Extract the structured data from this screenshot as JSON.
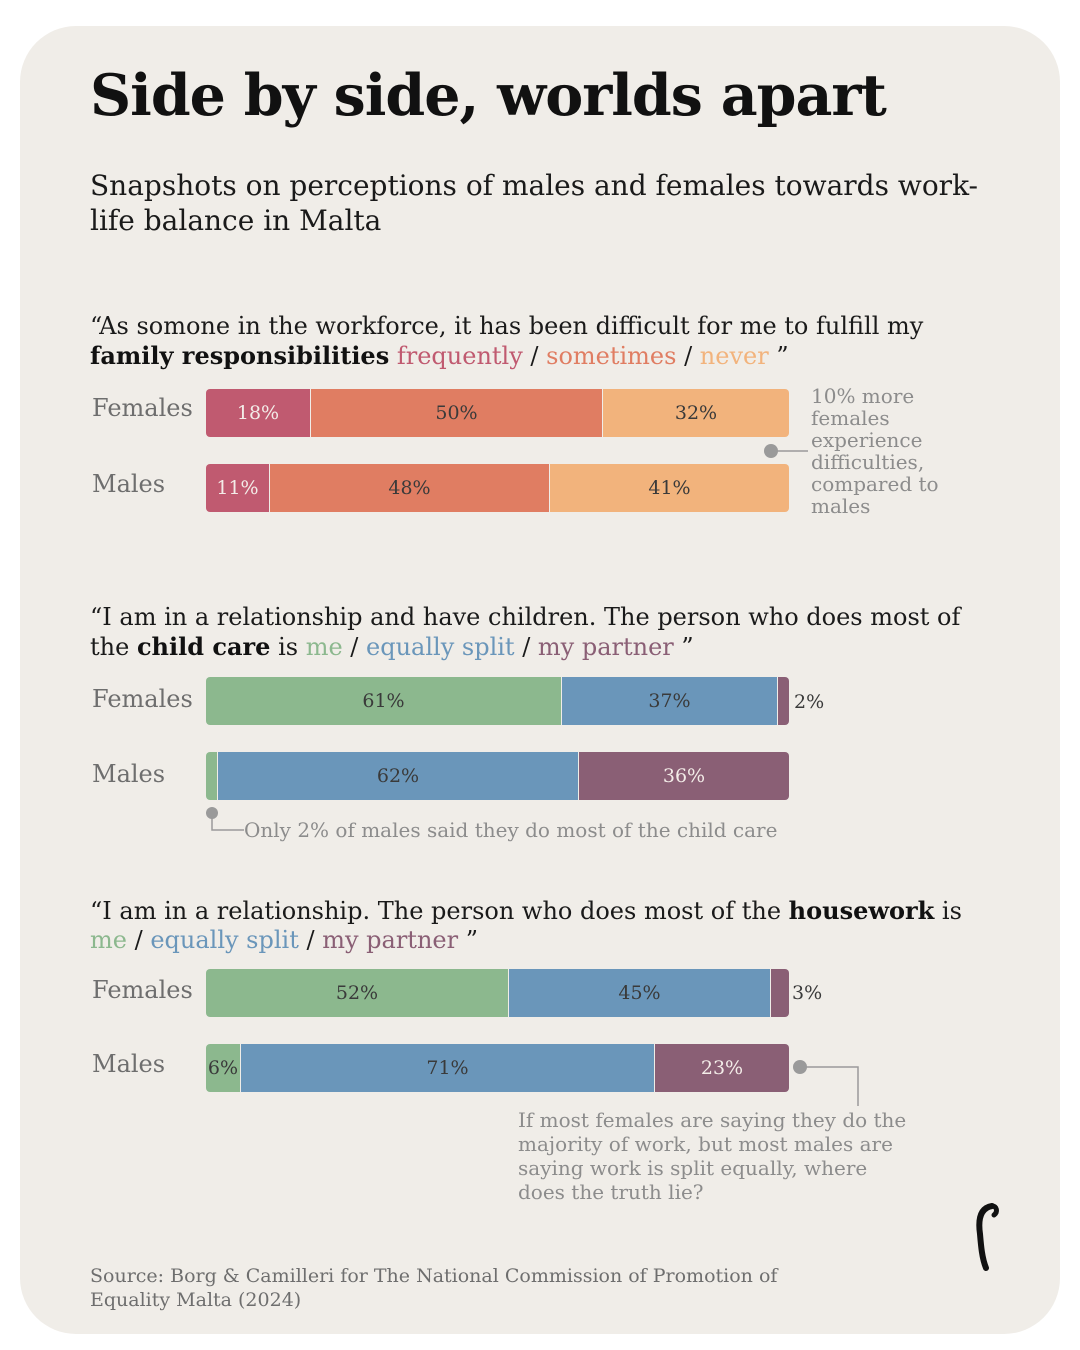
{
  "title": "Side by side, worlds apart",
  "subtitle": "Snapshots on perceptions of males and females towards work-life balance in Malta",
  "colors": {
    "frequently": "#c05a70",
    "sometimes": "#e07d62",
    "never": "#f2b37c",
    "me": "#8cb88e",
    "equally_split": "#6a96ba",
    "my_partner": "#8a5f75"
  },
  "questions": {
    "q1": {
      "open": "“As somone in the workforce, it has been difficult for me to fulfill my ",
      "bold": "family responsibilities",
      "sep": " / ",
      "opt1": "frequently",
      "opt2": "sometimes",
      "opt3": "never",
      "close": " ”"
    },
    "q2": {
      "open": "“I am in a relationship and have children. The person who does most of the ",
      "bold": "child care",
      "is": " is ",
      "sep": " / ",
      "opt1": "me",
      "opt2": "equally split",
      "opt3": "my partner",
      "close": " ”"
    },
    "q3": {
      "open": "“I am in a relationship. The person who does most of the ",
      "bold": "housework",
      "is": " is ",
      "sep": " / ",
      "opt1": "me",
      "opt2": "equally split",
      "opt3": "my partner",
      "close": " ”"
    }
  },
  "chart_data": [
    {
      "type": "bar",
      "stacked": true,
      "orientation": "horizontal",
      "title": "family responsibilities",
      "categories": [
        "Females",
        "Males"
      ],
      "series": [
        {
          "name": "frequently",
          "values": [
            18,
            11
          ],
          "labels": [
            "18%",
            "11%"
          ]
        },
        {
          "name": "sometimes",
          "values": [
            50,
            48
          ],
          "labels": [
            "50%",
            "48%"
          ]
        },
        {
          "name": "never",
          "values": [
            32,
            41
          ],
          "labels": [
            "32%",
            "41%"
          ]
        }
      ],
      "annotation": "10% more females experience difficulties, compared to males"
    },
    {
      "type": "bar",
      "stacked": true,
      "orientation": "horizontal",
      "title": "child care",
      "categories": [
        "Females",
        "Males"
      ],
      "series": [
        {
          "name": "me",
          "values": [
            61,
            2
          ],
          "labels": [
            "61%",
            ""
          ]
        },
        {
          "name": "equally split",
          "values": [
            37,
            62
          ],
          "labels": [
            "37%",
            "62%"
          ]
        },
        {
          "name": "my partner",
          "values": [
            2,
            36
          ],
          "labels": [
            "2%",
            "36%"
          ]
        }
      ],
      "annotation": "Only 2% of males said they do most of the child care"
    },
    {
      "type": "bar",
      "stacked": true,
      "orientation": "horizontal",
      "title": "housework",
      "categories": [
        "Females",
        "Males"
      ],
      "series": [
        {
          "name": "me",
          "values": [
            52,
            6
          ],
          "labels": [
            "52%",
            "6%"
          ]
        },
        {
          "name": "equally split",
          "values": [
            45,
            71
          ],
          "labels": [
            "45%",
            "71%"
          ]
        },
        {
          "name": "my partner",
          "values": [
            3,
            23
          ],
          "labels": [
            "3%",
            "23%"
          ]
        }
      ],
      "annotation": "If most females are saying they do the majority of work, but most males are saying work is split equally, where does the truth lie?"
    }
  ],
  "source": "Source: Borg & Camilleri for The National Commission of Promotion of Equality Malta (2024)",
  "logo_icon": "publisher-logo-icon"
}
